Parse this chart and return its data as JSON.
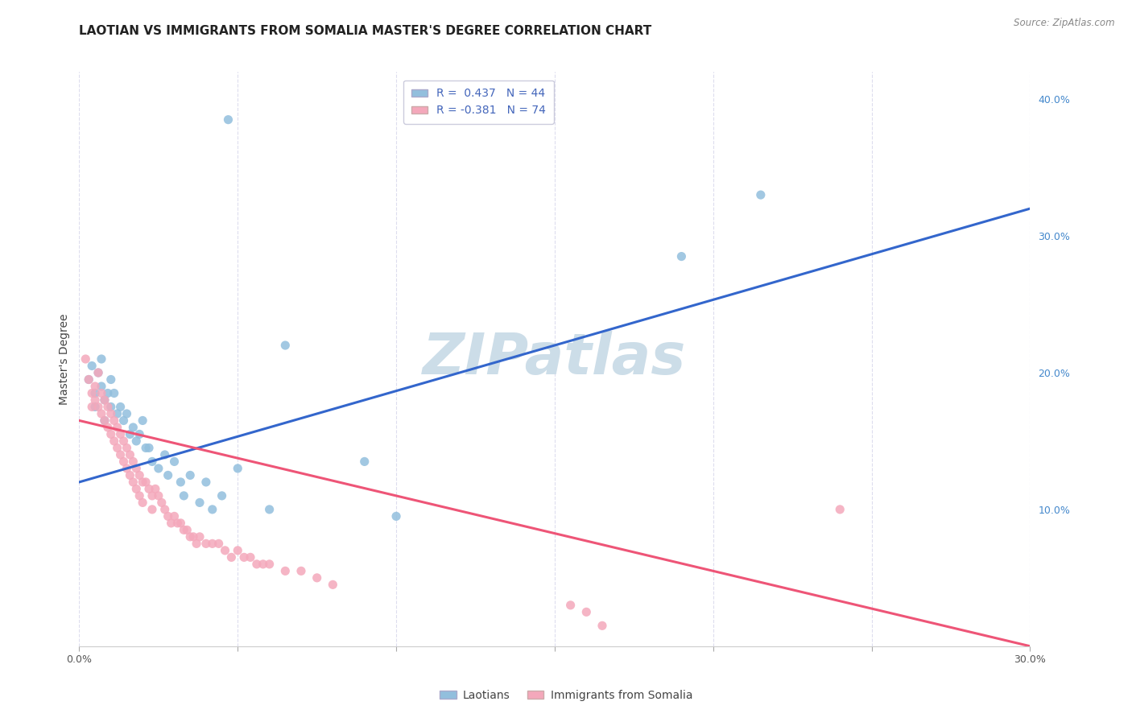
{
  "title": "LAOTIAN VS IMMIGRANTS FROM SOMALIA MASTER'S DEGREE CORRELATION CHART",
  "source": "Source: ZipAtlas.com",
  "ylabel": "Master's Degree",
  "watermark": "ZIPatlas",
  "xlim": [
    0.0,
    0.3
  ],
  "ylim": [
    0.0,
    0.42
  ],
  "x_ticks": [
    0.0,
    0.05,
    0.1,
    0.15,
    0.2,
    0.25,
    0.3
  ],
  "y_ticks_right": [
    0.0,
    0.1,
    0.2,
    0.3,
    0.4
  ],
  "y_tick_labels_right": [
    "",
    "10.0%",
    "20.0%",
    "30.0%",
    "40.0%"
  ],
  "blue_color": "#92bfdd",
  "pink_color": "#f4a8bb",
  "line_blue": "#3366cc",
  "line_pink": "#ee5577",
  "blue_scatter": [
    [
      0.003,
      0.195
    ],
    [
      0.004,
      0.205
    ],
    [
      0.005,
      0.185
    ],
    [
      0.005,
      0.175
    ],
    [
      0.006,
      0.2
    ],
    [
      0.007,
      0.21
    ],
    [
      0.007,
      0.19
    ],
    [
      0.008,
      0.18
    ],
    [
      0.008,
      0.165
    ],
    [
      0.009,
      0.185
    ],
    [
      0.01,
      0.195
    ],
    [
      0.01,
      0.175
    ],
    [
      0.011,
      0.185
    ],
    [
      0.012,
      0.17
    ],
    [
      0.013,
      0.175
    ],
    [
      0.014,
      0.165
    ],
    [
      0.015,
      0.17
    ],
    [
      0.016,
      0.155
    ],
    [
      0.017,
      0.16
    ],
    [
      0.018,
      0.15
    ],
    [
      0.019,
      0.155
    ],
    [
      0.02,
      0.165
    ],
    [
      0.021,
      0.145
    ],
    [
      0.022,
      0.145
    ],
    [
      0.023,
      0.135
    ],
    [
      0.025,
      0.13
    ],
    [
      0.027,
      0.14
    ],
    [
      0.028,
      0.125
    ],
    [
      0.03,
      0.135
    ],
    [
      0.032,
      0.12
    ],
    [
      0.033,
      0.11
    ],
    [
      0.035,
      0.125
    ],
    [
      0.038,
      0.105
    ],
    [
      0.04,
      0.12
    ],
    [
      0.042,
      0.1
    ],
    [
      0.045,
      0.11
    ],
    [
      0.05,
      0.13
    ],
    [
      0.06,
      0.1
    ],
    [
      0.065,
      0.22
    ],
    [
      0.047,
      0.385
    ],
    [
      0.19,
      0.285
    ],
    [
      0.215,
      0.33
    ],
    [
      0.09,
      0.135
    ],
    [
      0.1,
      0.095
    ]
  ],
  "pink_scatter": [
    [
      0.002,
      0.21
    ],
    [
      0.003,
      0.195
    ],
    [
      0.004,
      0.185
    ],
    [
      0.004,
      0.175
    ],
    [
      0.005,
      0.19
    ],
    [
      0.005,
      0.18
    ],
    [
      0.006,
      0.2
    ],
    [
      0.006,
      0.175
    ],
    [
      0.007,
      0.185
    ],
    [
      0.007,
      0.17
    ],
    [
      0.008,
      0.18
    ],
    [
      0.008,
      0.165
    ],
    [
      0.009,
      0.175
    ],
    [
      0.009,
      0.16
    ],
    [
      0.01,
      0.17
    ],
    [
      0.01,
      0.155
    ],
    [
      0.011,
      0.165
    ],
    [
      0.011,
      0.15
    ],
    [
      0.012,
      0.16
    ],
    [
      0.012,
      0.145
    ],
    [
      0.013,
      0.155
    ],
    [
      0.013,
      0.14
    ],
    [
      0.014,
      0.15
    ],
    [
      0.014,
      0.135
    ],
    [
      0.015,
      0.145
    ],
    [
      0.015,
      0.13
    ],
    [
      0.016,
      0.14
    ],
    [
      0.016,
      0.125
    ],
    [
      0.017,
      0.135
    ],
    [
      0.017,
      0.12
    ],
    [
      0.018,
      0.13
    ],
    [
      0.018,
      0.115
    ],
    [
      0.019,
      0.125
    ],
    [
      0.019,
      0.11
    ],
    [
      0.02,
      0.12
    ],
    [
      0.02,
      0.105
    ],
    [
      0.021,
      0.12
    ],
    [
      0.022,
      0.115
    ],
    [
      0.023,
      0.11
    ],
    [
      0.023,
      0.1
    ],
    [
      0.024,
      0.115
    ],
    [
      0.025,
      0.11
    ],
    [
      0.026,
      0.105
    ],
    [
      0.027,
      0.1
    ],
    [
      0.028,
      0.095
    ],
    [
      0.029,
      0.09
    ],
    [
      0.03,
      0.095
    ],
    [
      0.031,
      0.09
    ],
    [
      0.032,
      0.09
    ],
    [
      0.033,
      0.085
    ],
    [
      0.034,
      0.085
    ],
    [
      0.035,
      0.08
    ],
    [
      0.036,
      0.08
    ],
    [
      0.037,
      0.075
    ],
    [
      0.038,
      0.08
    ],
    [
      0.04,
      0.075
    ],
    [
      0.042,
      0.075
    ],
    [
      0.044,
      0.075
    ],
    [
      0.046,
      0.07
    ],
    [
      0.048,
      0.065
    ],
    [
      0.05,
      0.07
    ],
    [
      0.052,
      0.065
    ],
    [
      0.054,
      0.065
    ],
    [
      0.056,
      0.06
    ],
    [
      0.058,
      0.06
    ],
    [
      0.06,
      0.06
    ],
    [
      0.065,
      0.055
    ],
    [
      0.07,
      0.055
    ],
    [
      0.075,
      0.05
    ],
    [
      0.08,
      0.045
    ],
    [
      0.155,
      0.03
    ],
    [
      0.16,
      0.025
    ],
    [
      0.165,
      0.015
    ],
    [
      0.24,
      0.1
    ]
  ],
  "blue_line_x": [
    0.0,
    0.3
  ],
  "blue_line_y": [
    0.12,
    0.32
  ],
  "pink_line_x": [
    0.0,
    0.3
  ],
  "pink_line_y": [
    0.165,
    0.0
  ],
  "legend_entries": [
    "Laotians",
    "Immigrants from Somalia"
  ],
  "background_color": "#ffffff",
  "grid_color": "#ddddee",
  "title_fontsize": 11,
  "axis_label_fontsize": 10,
  "tick_fontsize": 9,
  "watermark_color": "#ccdde8",
  "watermark_fontsize": 52,
  "source_fontsize": 8.5
}
